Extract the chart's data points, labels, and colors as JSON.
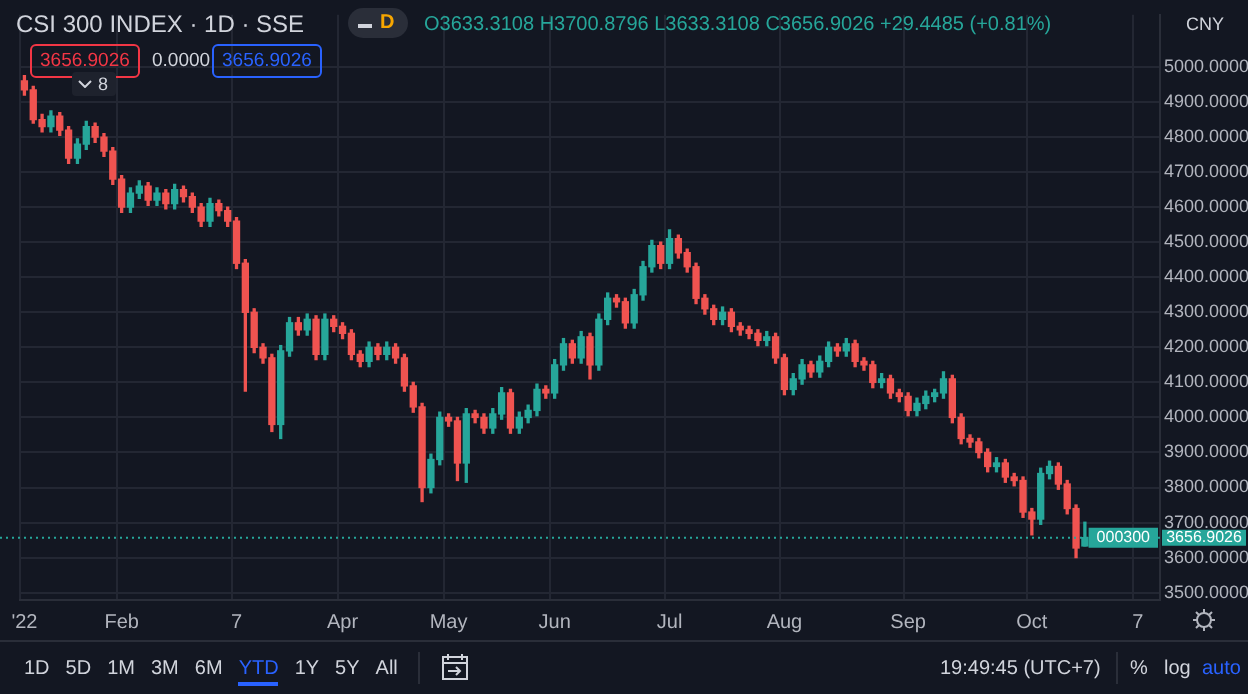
{
  "chart_data": {
    "type": "candlestick",
    "title": "CSI 300 INDEX · 1D · SSE",
    "categories": [
      "'22",
      null,
      null,
      null,
      null,
      null,
      null,
      null,
      null,
      null,
      null,
      "Feb",
      null,
      null,
      null,
      null,
      null,
      null,
      null,
      null,
      null,
      null,
      null,
      null,
      "7",
      null,
      null,
      null,
      null,
      null,
      null,
      null,
      null,
      null,
      null,
      null,
      "Apr",
      null,
      null,
      null,
      null,
      null,
      null,
      null,
      null,
      null,
      null,
      null,
      "May",
      null,
      null,
      null,
      null,
      null,
      null,
      null,
      null,
      null,
      null,
      null,
      "Jun",
      null,
      null,
      null,
      null,
      null,
      null,
      null,
      null,
      null,
      null,
      null,
      null,
      "Jul",
      null,
      null,
      null,
      null,
      null,
      null,
      null,
      null,
      null,
      null,
      null,
      null,
      "Aug",
      null,
      null,
      null,
      null,
      null,
      null,
      null,
      null,
      null,
      null,
      null,
      null,
      null,
      "Sep",
      null,
      null,
      null,
      null,
      null,
      null,
      null,
      null,
      null,
      null,
      null,
      null,
      null,
      "Oct",
      null,
      null,
      null,
      null,
      null,
      null,
      null,
      null,
      null,
      null,
      null,
      "7",
      null,
      null
    ],
    "ohlc": [
      [
        4960,
        4975,
        4920,
        4935
      ],
      [
        4935,
        4945,
        4840,
        4850
      ],
      [
        4850,
        4865,
        4815,
        4830
      ],
      [
        4830,
        4875,
        4815,
        4860
      ],
      [
        4860,
        4870,
        4805,
        4820
      ],
      [
        4820,
        4830,
        4725,
        4740
      ],
      [
        4740,
        4795,
        4725,
        4780
      ],
      [
        4780,
        4845,
        4765,
        4830
      ],
      [
        4830,
        4840,
        4785,
        4800
      ],
      [
        4800,
        4810,
        4745,
        4760
      ],
      [
        4760,
        4770,
        4665,
        4680
      ],
      [
        4680,
        4690,
        4585,
        4600
      ],
      [
        4600,
        4655,
        4585,
        4640
      ],
      [
        4640,
        4675,
        4625,
        4660
      ],
      [
        4660,
        4670,
        4605,
        4620
      ],
      [
        4620,
        4655,
        4605,
        4640
      ],
      [
        4640,
        4650,
        4595,
        4610
      ],
      [
        4610,
        4665,
        4595,
        4650
      ],
      [
        4650,
        4660,
        4615,
        4630
      ],
      [
        4630,
        4640,
        4585,
        4600
      ],
      [
        4600,
        4610,
        4545,
        4560
      ],
      [
        4560,
        4625,
        4545,
        4610
      ],
      [
        4610,
        4620,
        4575,
        4590
      ],
      [
        4590,
        4600,
        4545,
        4560
      ],
      [
        4560,
        4570,
        4425,
        4440
      ],
      [
        4440,
        4450,
        4075,
        4300
      ],
      [
        4300,
        4310,
        4185,
        4200
      ],
      [
        4200,
        4210,
        4155,
        4170
      ],
      [
        4170,
        4180,
        3960,
        3980
      ],
      [
        3980,
        4205,
        3940,
        4190
      ],
      [
        4190,
        4285,
        4175,
        4270
      ],
      [
        4270,
        4285,
        4235,
        4250
      ],
      [
        4250,
        4295,
        4235,
        4280
      ],
      [
        4280,
        4290,
        4165,
        4180
      ],
      [
        4180,
        4295,
        4165,
        4280
      ],
      [
        4280,
        4290,
        4245,
        4260
      ],
      [
        4260,
        4270,
        4225,
        4240
      ],
      [
        4240,
        4250,
        4165,
        4180
      ],
      [
        4180,
        4190,
        4145,
        4160
      ],
      [
        4160,
        4215,
        4145,
        4200
      ],
      [
        4200,
        4210,
        4165,
        4180
      ],
      [
        4180,
        4215,
        4165,
        4200
      ],
      [
        4200,
        4210,
        4155,
        4170
      ],
      [
        4170,
        4180,
        4075,
        4090
      ],
      [
        4090,
        4100,
        4015,
        4030
      ],
      [
        4030,
        4040,
        3760,
        3800
      ],
      [
        3800,
        3895,
        3785,
        3880
      ],
      [
        3880,
        4015,
        3865,
        4000
      ],
      [
        4000,
        4010,
        3975,
        3990
      ],
      [
        3990,
        4000,
        3820,
        3870
      ],
      [
        3870,
        4025,
        3815,
        4010
      ],
      [
        4010,
        4020,
        3985,
        4000
      ],
      [
        4000,
        4010,
        3955,
        3970
      ],
      [
        3970,
        4025,
        3955,
        4010
      ],
      [
        4010,
        4085,
        3995,
        4070
      ],
      [
        4070,
        4080,
        3955,
        3970
      ],
      [
        3970,
        4015,
        3955,
        4000
      ],
      [
        4000,
        4035,
        3985,
        4020
      ],
      [
        4020,
        4095,
        4005,
        4080
      ],
      [
        4080,
        4090,
        4055,
        4070
      ],
      [
        4070,
        4165,
        4055,
        4150
      ],
      [
        4150,
        4225,
        4135,
        4210
      ],
      [
        4210,
        4220,
        4155,
        4170
      ],
      [
        4170,
        4245,
        4155,
        4230
      ],
      [
        4230,
        4240,
        4110,
        4150
      ],
      [
        4150,
        4295,
        4135,
        4280
      ],
      [
        4280,
        4355,
        4265,
        4340
      ],
      [
        4340,
        4350,
        4315,
        4330
      ],
      [
        4330,
        4340,
        4255,
        4270
      ],
      [
        4270,
        4365,
        4255,
        4350
      ],
      [
        4350,
        4445,
        4335,
        4430
      ],
      [
        4430,
        4505,
        4415,
        4490
      ],
      [
        4490,
        4500,
        4425,
        4440
      ],
      [
        4440,
        4535,
        4425,
        4510
      ],
      [
        4510,
        4520,
        4455,
        4470
      ],
      [
        4470,
        4480,
        4415,
        4430
      ],
      [
        4430,
        4440,
        4325,
        4340
      ],
      [
        4340,
        4350,
        4295,
        4310
      ],
      [
        4310,
        4320,
        4265,
        4280
      ],
      [
        4280,
        4315,
        4265,
        4300
      ],
      [
        4300,
        4310,
        4245,
        4260
      ],
      [
        4260,
        4270,
        4235,
        4250
      ],
      [
        4250,
        4260,
        4225,
        4240
      ],
      [
        4240,
        4250,
        4205,
        4220
      ],
      [
        4220,
        4245,
        4205,
        4230
      ],
      [
        4230,
        4240,
        4155,
        4170
      ],
      [
        4170,
        4180,
        4065,
        4080
      ],
      [
        4080,
        4125,
        4065,
        4110
      ],
      [
        4110,
        4165,
        4095,
        4150
      ],
      [
        4150,
        4160,
        4115,
        4130
      ],
      [
        4130,
        4175,
        4115,
        4160
      ],
      [
        4160,
        4215,
        4145,
        4200
      ],
      [
        4200,
        4210,
        4175,
        4190
      ],
      [
        4190,
        4225,
        4175,
        4210
      ],
      [
        4210,
        4220,
        4145,
        4160
      ],
      [
        4160,
        4170,
        4135,
        4150
      ],
      [
        4150,
        4160,
        4085,
        4100
      ],
      [
        4100,
        4125,
        4085,
        4110
      ],
      [
        4110,
        4120,
        4055,
        4070
      ],
      [
        4070,
        4080,
        4045,
        4060
      ],
      [
        4060,
        4070,
        4005,
        4020
      ],
      [
        4020,
        4055,
        4005,
        4040
      ],
      [
        4040,
        4075,
        4025,
        4060
      ],
      [
        4060,
        4080,
        4045,
        4070
      ],
      [
        4070,
        4130,
        4055,
        4110
      ],
      [
        4110,
        4120,
        3985,
        4000
      ],
      [
        4000,
        4010,
        3925,
        3940
      ],
      [
        3940,
        3950,
        3915,
        3930
      ],
      [
        3930,
        3940,
        3885,
        3900
      ],
      [
        3900,
        3910,
        3845,
        3860
      ],
      [
        3860,
        3885,
        3845,
        3870
      ],
      [
        3870,
        3880,
        3815,
        3830
      ],
      [
        3830,
        3840,
        3805,
        3820
      ],
      [
        3820,
        3830,
        3715,
        3730
      ],
      [
        3730,
        3740,
        3665,
        3710
      ],
      [
        3710,
        3855,
        3695,
        3840
      ],
      [
        3840,
        3875,
        3825,
        3860
      ],
      [
        3860,
        3870,
        3795,
        3810
      ],
      [
        3810,
        3820,
        3725,
        3740
      ],
      [
        3740,
        3750,
        3600,
        3627.45
      ],
      [
        3633.3108,
        3700.8796,
        3633.3108,
        3656.9026
      ],
      null,
      null,
      null,
      null,
      null,
      null,
      null,
      null
    ],
    "ylim": [
      3479,
      5149
    ],
    "yticks": [
      {
        "value": 3500,
        "label": "3500.0000"
      },
      {
        "value": 3600,
        "label": "3600.0000"
      },
      {
        "value": 3700,
        "label": "3700.0000"
      },
      {
        "value": 3800,
        "label": "3800.0000"
      },
      {
        "value": 3900,
        "label": "3900.0000"
      },
      {
        "value": 4000,
        "label": "4000.0000"
      },
      {
        "value": 4100,
        "label": "4100.0000"
      },
      {
        "value": 4200,
        "label": "4200.0000"
      },
      {
        "value": 4300,
        "label": "4300.0000"
      },
      {
        "value": 4400,
        "label": "4400.0000"
      },
      {
        "value": 4500,
        "label": "4500.0000"
      },
      {
        "value": 4600,
        "label": "4600.0000"
      },
      {
        "value": 4700,
        "label": "4700.0000"
      },
      {
        "value": 4800,
        "label": "4800.0000"
      },
      {
        "value": 4900,
        "label": "4900.0000"
      },
      {
        "value": 5000,
        "label": "5000.0000"
      }
    ],
    "grid": true,
    "ref_lines": [
      {
        "axis": "y",
        "value": 3656.9026,
        "color": "#26a69a",
        "line_style": "dotted"
      }
    ],
    "annotations": [
      "D",
      "O3633.3108 H3700.8796 L3633.3108 C3656.9026 +29.4485 (+0.81%)",
      "3656.9026",
      "0.0000",
      "3656.9026",
      "8",
      "CNY",
      "1D",
      "5D",
      "1M",
      "3M",
      "6M",
      "YTD",
      "1Y",
      "5Y",
      "All",
      "19:49:45 (UTC+7)",
      "%",
      "log",
      "auto",
      "000300"
    ]
  }
}
